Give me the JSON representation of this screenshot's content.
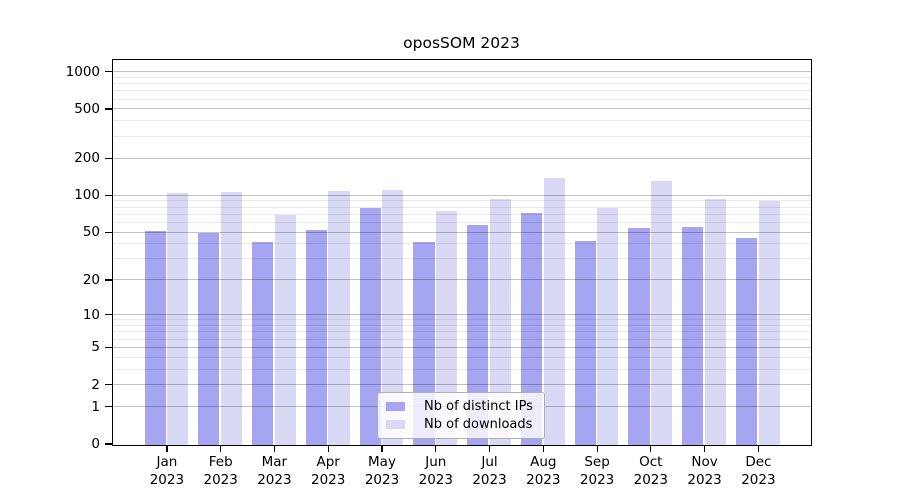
{
  "figure": {
    "title": "oposSOM 2023"
  },
  "chart_data": {
    "type": "bar",
    "title": "oposSOM 2023",
    "categories": [
      "Jan",
      "Feb",
      "Mar",
      "Apr",
      "May",
      "Jun",
      "Jul",
      "Aug",
      "Sep",
      "Oct",
      "Nov",
      "Dec"
    ],
    "year_label": "2023",
    "series": [
      {
        "name": "Nb of distinct IPs",
        "color": "#a5a5f1",
        "values": [
          52,
          50,
          42,
          53,
          79,
          42,
          58,
          72,
          43,
          55,
          56,
          45
        ]
      },
      {
        "name": "Nb of downloads",
        "color": "#d9d9f6",
        "values": [
          105,
          107,
          70,
          109,
          112,
          75,
          95,
          139,
          79,
          132,
          95,
          90
        ]
      }
    ],
    "yscale": "log1p",
    "ylim": [
      0,
      1240
    ],
    "y_major_ticks": [
      0,
      1,
      2,
      5,
      10,
      20,
      50,
      100,
      200,
      500,
      1000
    ],
    "y_minor_ticks": [
      3,
      4,
      6,
      7,
      8,
      9,
      30,
      40,
      60,
      70,
      80,
      90,
      300,
      400,
      600,
      700,
      800,
      900
    ],
    "grid": "on",
    "legend_position": "bottom-center",
    "colors": {
      "bar_distinct_ips": "#a5a5f1",
      "bar_downloads": "#d9d9f6",
      "major_grid": "#bdbdbd",
      "minor_grid": "#ebebeb",
      "axis": "#000000",
      "legend_border": "#b0b0b0"
    }
  }
}
